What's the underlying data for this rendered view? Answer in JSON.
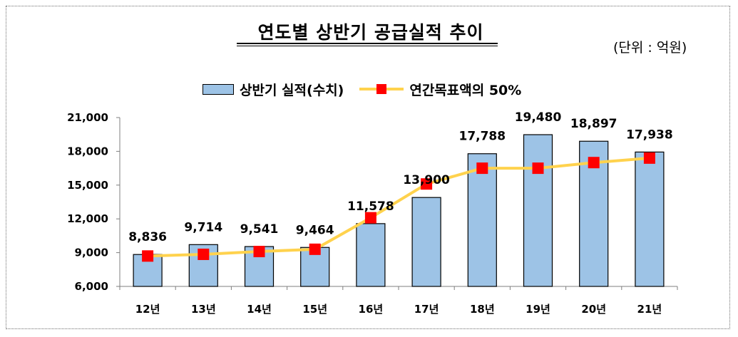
{
  "title": "연도별 상반기 공급실적 추이",
  "unit_label": "(단위 : 억원)",
  "chart_data": {
    "type": "bar",
    "title": "연도별 상반기 공급실적 추이",
    "categories": [
      "12년",
      "13년",
      "14년",
      "15년",
      "16년",
      "17년",
      "18년",
      "19년",
      "20년",
      "21년"
    ],
    "series": [
      {
        "name": "상반기 실적(수치)",
        "type": "bar",
        "color": "#9dc3e6",
        "values": [
          8836,
          9714,
          9541,
          9464,
          11578,
          13900,
          17788,
          19480,
          18897,
          17938
        ]
      },
      {
        "name": "연간목표액의 50%",
        "type": "line",
        "color": "#ffd24d",
        "marker_color": "#ff0000",
        "values": [
          8700,
          8850,
          9100,
          9300,
          12100,
          15100,
          16500,
          16500,
          17000,
          17400
        ]
      }
    ],
    "data_labels": [
      "8,836",
      "9,714",
      "9,541",
      "9,464",
      "11,578",
      "13,900",
      "17,788",
      "19,480",
      "18,897",
      "17,938"
    ],
    "y_ticks": [
      "21,000",
      "18,000",
      "15,000",
      "12,000",
      "9,000",
      "6,000"
    ],
    "y_tick_values": [
      21000,
      18000,
      15000,
      12000,
      9000,
      6000
    ],
    "ylim": [
      6000,
      21000
    ],
    "xlabel": "",
    "ylabel": "",
    "grid": false,
    "legend_position": "top"
  }
}
